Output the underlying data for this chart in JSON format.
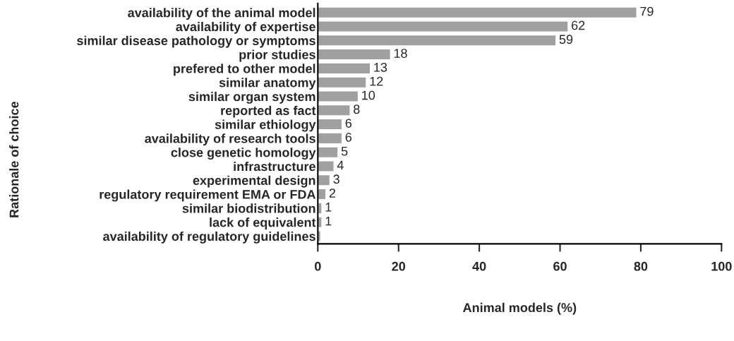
{
  "chart_data": {
    "type": "bar",
    "orientation": "horizontal",
    "xlabel": "Animal models (%)",
    "ylabel": "Rationale of choice",
    "categories": [
      "availability of the animal model",
      "availability of expertise",
      "similar disease pathology or symptoms",
      "prior studies",
      "prefered to other model",
      "similar anatomy",
      "similar organ system",
      "reported as fact",
      "similar ethiology",
      "availability of research tools",
      "close genetic homology",
      "infrastructure",
      "experimental design",
      "regulatory requirement EMA or FDA",
      "similar biodistribution",
      "lack of equivalent",
      "availability of regulatory guidelines"
    ],
    "values": [
      79,
      62,
      59,
      18,
      13,
      12,
      10,
      8,
      6,
      6,
      5,
      4,
      3,
      2,
      1,
      1,
      0.7
    ],
    "value_labels": [
      "79",
      "62",
      "59",
      "18",
      "13",
      "12",
      "10",
      "8",
      "6",
      "6",
      "5",
      "4",
      "3",
      "2",
      "1",
      "1",
      null
    ],
    "color": "#a0a0a0",
    "xlim": [
      0,
      100
    ],
    "xticks": [
      0,
      20,
      40,
      60,
      80,
      100
    ],
    "grid": false,
    "legend": false
  }
}
